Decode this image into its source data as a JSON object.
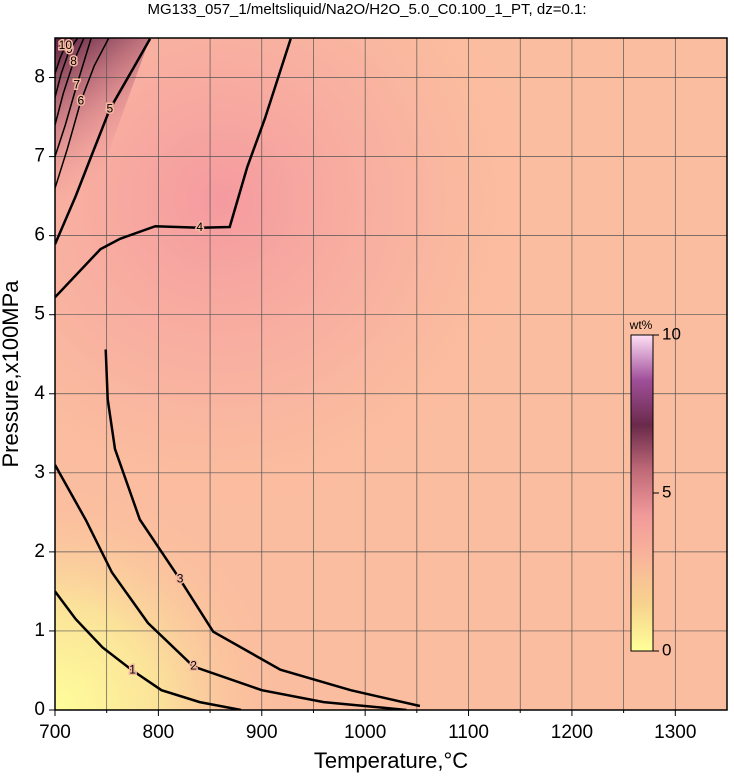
{
  "chart_data": {
    "type": "contour",
    "title": "MG133_057_1/meltsliquid/Na2O/H2O_5.0_C0.100_1_PT, dz=0.1:",
    "xlabel": "Temperature,°C",
    "ylabel": "Pressure,x100MPa",
    "xlim": [
      700,
      1350
    ],
    "ylim": [
      0,
      8.5
    ],
    "xticks": [
      700,
      800,
      900,
      1000,
      1100,
      1200,
      1300
    ],
    "xminorticks": [
      750,
      850,
      950,
      1050,
      1150,
      1250
    ],
    "yticks": [
      0,
      1,
      2,
      3,
      4,
      5,
      6,
      7,
      8
    ],
    "grid": true,
    "contours": [
      {
        "level": 1,
        "x": [
          700,
          720,
          746,
          775,
          803,
          840,
          880
        ],
        "y": [
          1.5,
          1.15,
          0.79,
          0.5,
          0.25,
          0.1,
          0.0
        ]
      },
      {
        "level": 2,
        "x": [
          700,
          730,
          755,
          790,
          834,
          900,
          960,
          1040
        ],
        "y": [
          3.1,
          2.4,
          1.74,
          1.1,
          0.55,
          0.25,
          0.1,
          0.0
        ]
      },
      {
        "level": 3,
        "x": [
          749,
          751,
          758,
          782,
          821,
          853,
          918,
          986,
          1053
        ],
        "y": [
          4.56,
          3.93,
          3.3,
          2.41,
          1.65,
          0.99,
          0.51,
          0.25,
          0.05
        ]
      },
      {
        "level": 4,
        "x": [
          700,
          744,
          763,
          797,
          840,
          869,
          886,
          903,
          928
        ],
        "y": [
          5.22,
          5.83,
          5.96,
          6.12,
          6.1,
          6.11,
          6.87,
          7.48,
          8.49
        ]
      },
      {
        "level": 5,
        "x": [
          700,
          720,
          734,
          753,
          775,
          792
        ],
        "y": [
          5.89,
          6.5,
          6.97,
          7.6,
          8.1,
          8.49
        ]
      },
      {
        "level": 6,
        "x": [
          700,
          712,
          725,
          738,
          752
        ],
        "y": [
          6.6,
          7.1,
          7.7,
          8.15,
          8.5
        ]
      },
      {
        "level": 7,
        "x": [
          700,
          710,
          721,
          735
        ],
        "y": [
          7.0,
          7.4,
          7.9,
          8.5
        ]
      },
      {
        "level": 8,
        "x": [
          700,
          708,
          718,
          728
        ],
        "y": [
          7.4,
          7.8,
          8.2,
          8.5
        ]
      },
      {
        "level": 9,
        "x": [
          700,
          706,
          714,
          722
        ],
        "y": [
          7.75,
          8.05,
          8.35,
          8.5
        ]
      },
      {
        "level": 10,
        "x": [
          700,
          705,
          710,
          716
        ],
        "y": [
          8.05,
          8.25,
          8.4,
          8.5
        ]
      }
    ],
    "colorbar": {
      "label": "wt%",
      "lim": [
        0,
        10
      ],
      "ticks": [
        0,
        5,
        10
      ],
      "colors": [
        "#ffff99",
        "#f7d48e",
        "#f9b79a",
        "#f29a9a",
        "#c06a78",
        "#6a2a4a",
        "#a04f9a",
        "#ffe0f5"
      ]
    }
  }
}
